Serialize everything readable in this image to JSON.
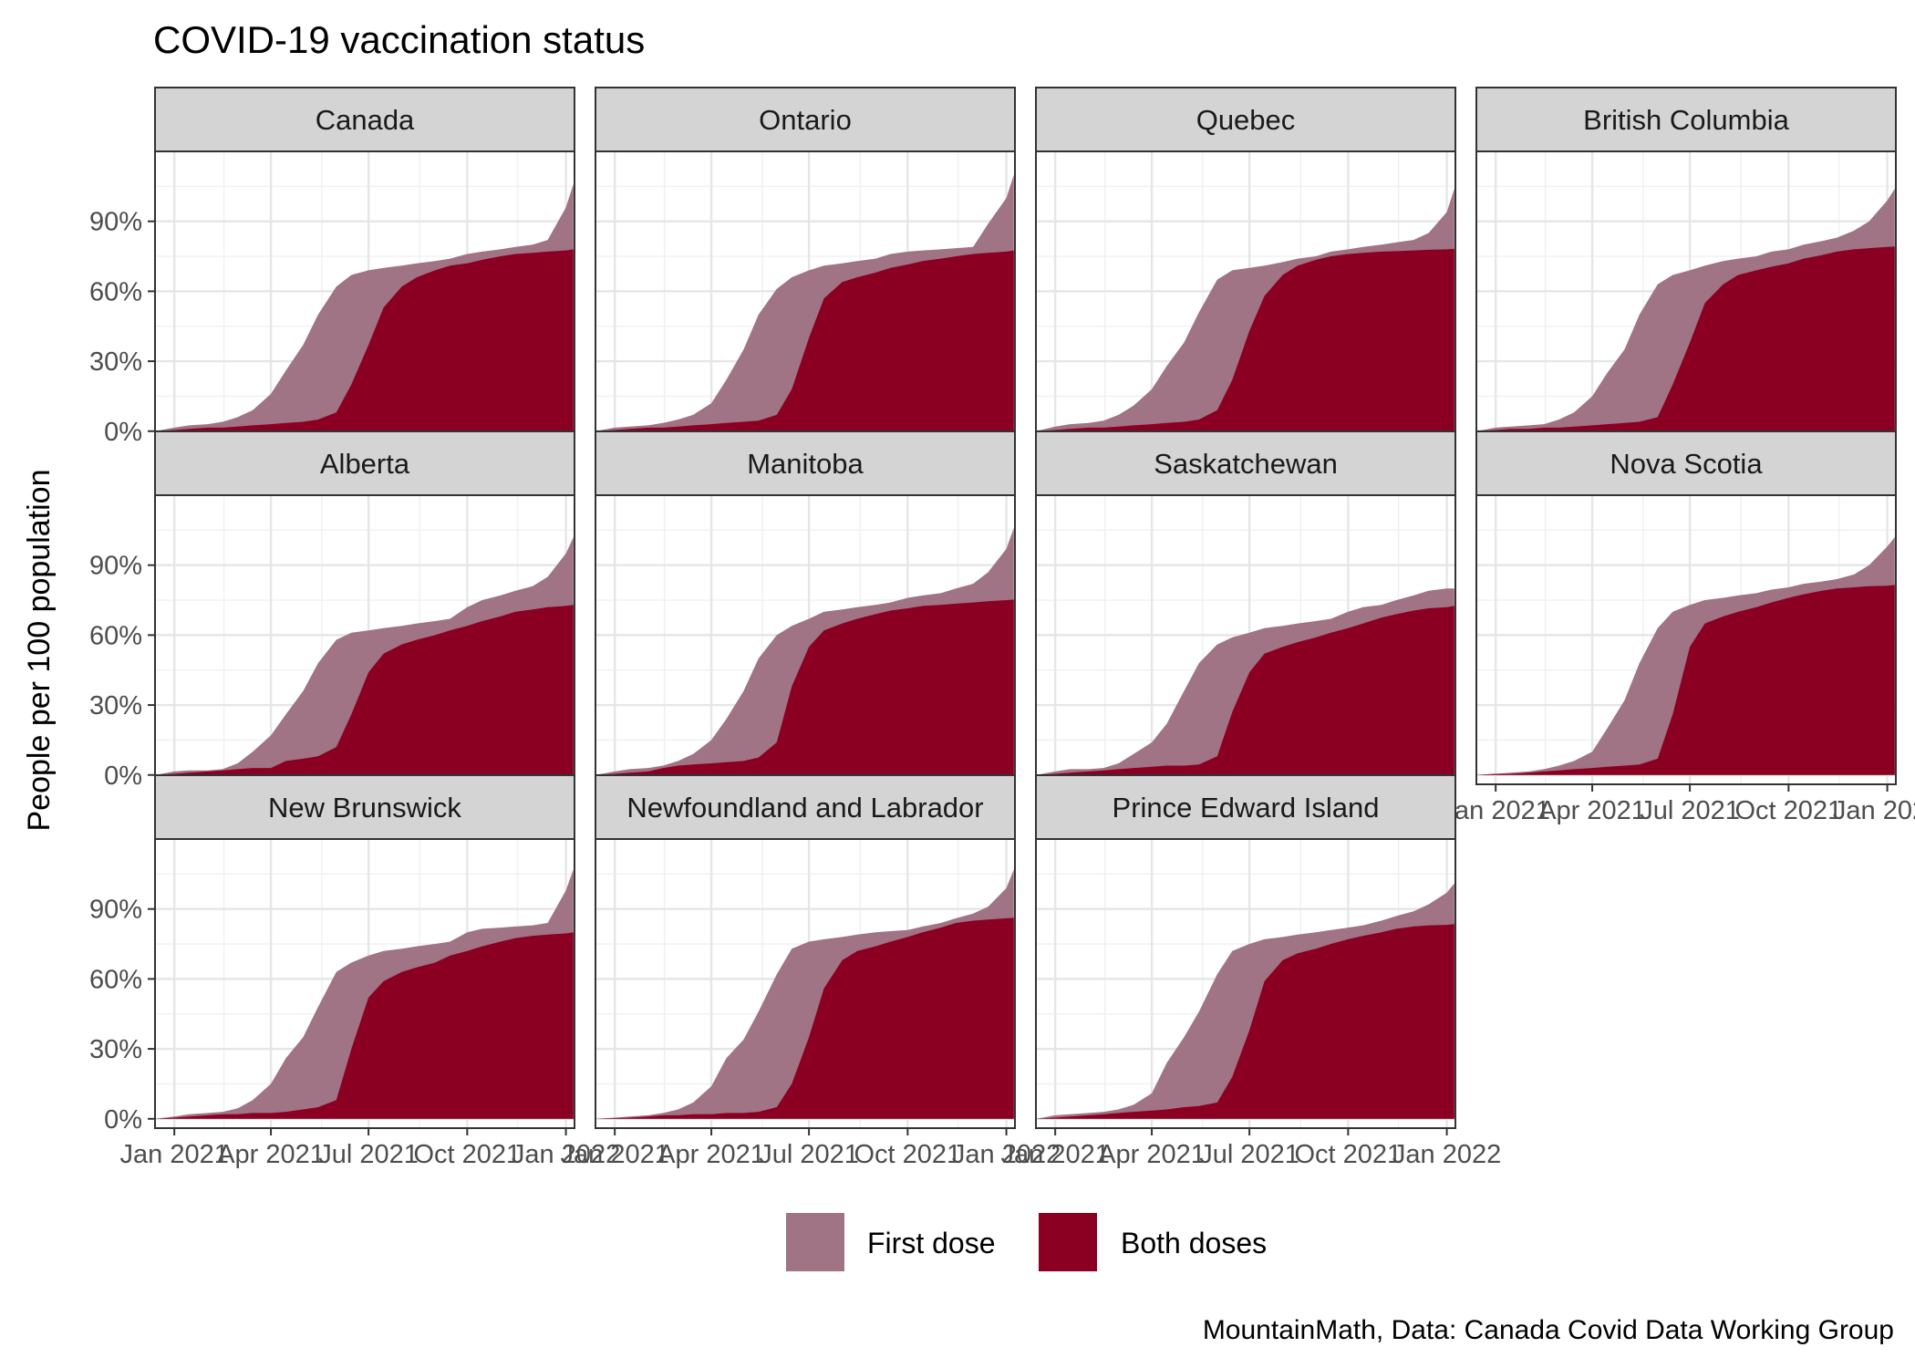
{
  "chart_data": {
    "type": "area",
    "title": "COVID-19 vaccination status",
    "ylabel": "People per 100 population",
    "xlabel": "",
    "caption": "MountainMath, Data: Canada Covid Data Working Group",
    "x_range": [
      "2020-12-14",
      "2022-01-09"
    ],
    "ylim": [
      -4,
      120
    ],
    "y_ticks": [
      0,
      30,
      60,
      90
    ],
    "y_tick_labels": [
      "0%",
      "30%",
      "60%",
      "90%"
    ],
    "x_ticks": [
      "2021-01-01",
      "2021-04-01",
      "2021-07-01",
      "2021-10-01",
      "2022-01-01"
    ],
    "x_tick_labels": [
      "Jan 2021",
      "Apr 2021",
      "Jul 2021",
      "Oct 2021",
      "Jan 2022"
    ],
    "grid": true,
    "legend": {
      "position": "bottom",
      "entries": [
        {
          "name": "First dose",
          "color": "#a07385"
        },
        {
          "name": "Both doses",
          "color": "#8b0022"
        }
      ]
    },
    "x": [
      "2020-12-14",
      "2021-01-01",
      "2021-01-15",
      "2021-02-01",
      "2021-02-15",
      "2021-03-01",
      "2021-03-15",
      "2021-04-01",
      "2021-04-15",
      "2021-05-01",
      "2021-05-15",
      "2021-06-01",
      "2021-06-15",
      "2021-07-01",
      "2021-07-15",
      "2021-08-01",
      "2021-08-15",
      "2021-09-01",
      "2021-09-15",
      "2021-10-01",
      "2021-10-15",
      "2021-11-01",
      "2021-11-15",
      "2021-12-01",
      "2021-12-15",
      "2022-01-01",
      "2022-01-08"
    ],
    "panels": [
      {
        "name": "Canada",
        "series": [
          {
            "name": "First dose",
            "values": [
              0,
              1.5,
              2.5,
              3,
              4,
              6,
              9,
              16,
              26,
              37,
              50,
              62,
              67,
              69,
              70,
              71,
              72,
              73,
              74,
              76,
              77,
              78,
              79,
              80,
              82,
              96,
              106
            ]
          },
          {
            "name": "Both doses",
            "values": [
              0,
              0.5,
              1,
              1.5,
              1.5,
              2,
              2.5,
              3,
              3.5,
              4,
              5,
              8,
              20,
              37,
              53,
              62,
              66,
              69,
              71,
              72,
              73.5,
              75,
              76,
              76.5,
              77,
              77.5,
              78
            ]
          }
        ]
      },
      {
        "name": "Ontario",
        "series": [
          {
            "name": "First dose",
            "values": [
              0,
              1.5,
              2,
              2.5,
              3.5,
              5,
              7,
              12,
              22,
              35,
              50,
              61,
              66,
              69,
              71,
              72,
              73,
              74,
              76,
              77,
              77.5,
              78,
              78.5,
              79,
              89,
              100,
              110
            ]
          },
          {
            "name": "Both doses",
            "values": [
              0,
              0.5,
              1,
              1.5,
              1.5,
              2,
              2.5,
              3,
              3.5,
              4,
              4.5,
              7,
              18,
              40,
              57,
              64,
              66,
              68,
              70,
              71.5,
              73,
              74,
              75,
              76,
              76.5,
              77,
              77.5
            ]
          }
        ]
      },
      {
        "name": "Quebec",
        "series": [
          {
            "name": "First dose",
            "values": [
              0,
              2,
              3,
              3.5,
              4.5,
              7,
              11,
              18,
              28,
              38,
              51,
              65,
              69,
              70,
              71,
              72.5,
              74,
              75,
              77,
              78,
              79,
              80,
              81,
              82,
              85,
              94,
              104
            ]
          },
          {
            "name": "Both doses",
            "values": [
              0,
              0.5,
              1,
              1.5,
              1.5,
              2,
              2.5,
              3,
              3.5,
              4,
              5,
              9,
              22,
              43,
              58,
              67,
              71,
              73.5,
              75,
              76,
              76.5,
              77,
              77.2,
              77.5,
              77.8,
              78,
              78.2
            ]
          }
        ]
      },
      {
        "name": "British Columbia",
        "series": [
          {
            "name": "First dose",
            "values": [
              0,
              1.5,
              2,
              2.5,
              3,
              5,
              8,
              15,
              25,
              35,
              50,
              63,
              67,
              69,
              71,
              73,
              74,
              75,
              77,
              78,
              80,
              81.5,
              83,
              86,
              90,
              99,
              104
            ]
          },
          {
            "name": "Both doses",
            "values": [
              0,
              0.5,
              1,
              1,
              1.5,
              1.5,
              2,
              2.5,
              3,
              3.5,
              4,
              6,
              20,
              38,
              55,
              63,
              67,
              69,
              70.5,
              72,
              74,
              75.5,
              77,
              78,
              78.5,
              79,
              79.2
            ]
          }
        ]
      },
      {
        "name": "Alberta",
        "series": [
          {
            "name": "First dose",
            "values": [
              0,
              1.5,
              2,
              2,
              2.5,
              5,
              10,
              17,
              26,
              36,
              48,
              58,
              61,
              62,
              63,
              64,
              65,
              66,
              67,
              72,
              75,
              77,
              79,
              81,
              85,
              95,
              102
            ]
          },
          {
            "name": "Both doses",
            "values": [
              0,
              0.5,
              1,
              1.5,
              2,
              2.5,
              3,
              3,
              6,
              7,
              8,
              12,
              26,
              44,
              52,
              56,
              58,
              60,
              62,
              64,
              66,
              68,
              70,
              71,
              72,
              72.5,
              73
            ]
          }
        ]
      },
      {
        "name": "Manitoba",
        "series": [
          {
            "name": "First dose",
            "values": [
              0,
              1.5,
              2.5,
              3,
              4,
              6,
              9,
              15,
              24,
              36,
              50,
              60,
              64,
              67,
              70,
              71,
              72,
              73,
              74,
              76,
              77,
              78,
              80,
              82,
              87,
              97,
              106
            ]
          },
          {
            "name": "Both doses",
            "values": [
              0,
              0.5,
              1,
              1.5,
              3,
              4,
              4.5,
              5,
              5.5,
              6,
              7.5,
              14,
              38,
              55,
              62,
              65,
              67,
              69,
              70.5,
              71.5,
              72.5,
              73,
              73.5,
              74,
              74.5,
              75,
              75.2
            ]
          }
        ]
      },
      {
        "name": "Saskatchewan",
        "series": [
          {
            "name": "First dose",
            "values": [
              0,
              1.5,
              2.5,
              2.5,
              3,
              5,
              9,
              14,
              22,
              36,
              48,
              56,
              59,
              61,
              63,
              64,
              65,
              66,
              67,
              70,
              72,
              73,
              75,
              77,
              79,
              80,
              80
            ]
          },
          {
            "name": "Both doses",
            "values": [
              0,
              0.5,
              1,
              1.5,
              2,
              2.5,
              3,
              3.5,
              4,
              4,
              4.5,
              8,
              27,
              44,
              52,
              55,
              57,
              59,
              61,
              63,
              65,
              67.5,
              69,
              70.5,
              71.5,
              72,
              72.5
            ]
          }
        ]
      },
      {
        "name": "Nova Scotia",
        "series": [
          {
            "name": "First dose",
            "values": [
              0,
              0.5,
              1,
              1.5,
              2.5,
              4,
              6,
              10,
              20,
              32,
              48,
              63,
              70,
              73,
              75,
              76,
              77,
              78,
              79.5,
              80.5,
              82,
              83,
              84,
              86,
              90,
              98,
              102
            ]
          },
          {
            "name": "Both doses",
            "values": [
              0,
              0.5,
              0.5,
              1,
              1.5,
              2,
              2.5,
              3,
              3.5,
              4,
              4.5,
              7,
              26,
              55,
              65,
              68,
              70,
              72,
              74,
              76,
              77.5,
              79,
              80,
              80.5,
              81,
              81.2,
              81.5
            ]
          }
        ]
      },
      {
        "name": "New Brunswick",
        "series": [
          {
            "name": "First dose",
            "values": [
              0,
              1,
              2,
              2.5,
              3,
              4.5,
              8,
              15,
              26,
              35,
              48,
              63,
              67,
              70,
              72,
              73,
              74,
              75,
              76,
              80,
              81.5,
              82,
              82.5,
              83,
              84,
              98,
              107
            ]
          },
          {
            "name": "Both doses",
            "values": [
              0,
              0.5,
              1,
              1.5,
              2,
              2,
              2.5,
              2.5,
              3,
              4,
              5,
              8,
              30,
              52,
              59,
              63,
              65,
              67,
              70,
              72,
              74,
              76,
              77.5,
              78.5,
              79,
              79.5,
              80
            ]
          }
        ]
      },
      {
        "name": "Newfoundland and Labrador",
        "series": [
          {
            "name": "First dose",
            "values": [
              0,
              0.5,
              1,
              1.5,
              2.5,
              4,
              7,
              14,
              26,
              34,
              46,
              62,
              73,
              76,
              77,
              78,
              79,
              80,
              80.5,
              81,
              82.5,
              84,
              86,
              88,
              91,
              99,
              107
            ]
          },
          {
            "name": "Both doses",
            "values": [
              0,
              0.3,
              0.5,
              1,
              1.5,
              1.5,
              2,
              2,
              2.5,
              2.5,
              3,
              5,
              15,
              35,
              56,
              68,
              72,
              74,
              76,
              78,
              80,
              82,
              84,
              85,
              85.5,
              86,
              86.2
            ]
          }
        ]
      },
      {
        "name": "Prince Edward Island",
        "series": [
          {
            "name": "First dose",
            "values": [
              0,
              1.5,
              2,
              2.5,
              3,
              4,
              6,
              11,
              24,
              35,
              46,
              62,
              72,
              75,
              77,
              78,
              79,
              80,
              81,
              82,
              83,
              85,
              87,
              89,
              92,
              97,
              101
            ]
          },
          {
            "name": "Both doses",
            "values": [
              0,
              0.5,
              1,
              1.5,
              2,
              2.5,
              3,
              3.5,
              4,
              5,
              5.5,
              7,
              18,
              38,
              59,
              68,
              71,
              73,
              75,
              77,
              78.5,
              80,
              81.5,
              82.5,
              83,
              83.2,
              83.5
            ]
          }
        ]
      }
    ]
  }
}
